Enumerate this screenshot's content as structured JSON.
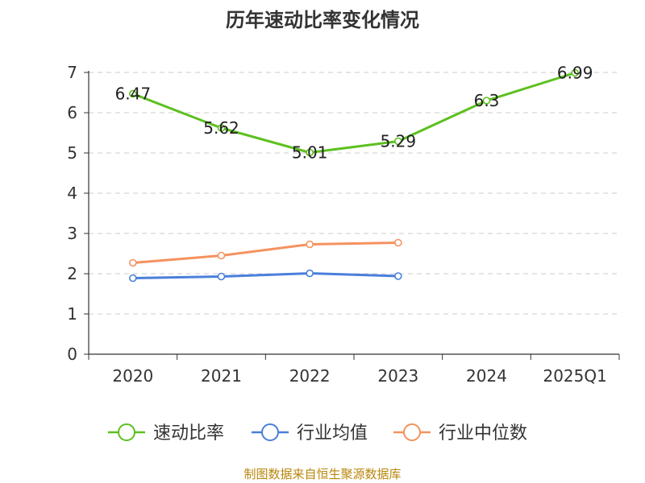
{
  "chart_data": {
    "type": "line",
    "title": "历年速动比率变化情况",
    "categories": [
      "2020",
      "2021",
      "2022",
      "2023",
      "2024",
      "2025Q1"
    ],
    "ylim": [
      0,
      7
    ],
    "yticks": [
      0,
      1,
      2,
      3,
      4,
      5,
      6,
      7
    ],
    "grid": true,
    "legend_position": "bottom",
    "series": [
      {
        "name": "速动比率",
        "color": "#5cc01f",
        "values": [
          6.47,
          5.62,
          5.01,
          5.29,
          6.3,
          6.99
        ],
        "labels": [
          "6.47",
          "5.62",
          "5.01",
          "5.29",
          "6.3",
          "6.99"
        ]
      },
      {
        "name": "行业均值",
        "color": "#4a7fdb",
        "values": [
          1.89,
          1.93,
          2.01,
          1.94,
          null,
          null
        ]
      },
      {
        "name": "行业中位数",
        "color": "#f5925e",
        "values": [
          2.27,
          2.45,
          2.73,
          2.77,
          null,
          null
        ]
      }
    ]
  },
  "source": "制图数据来自恒生聚源数据库"
}
